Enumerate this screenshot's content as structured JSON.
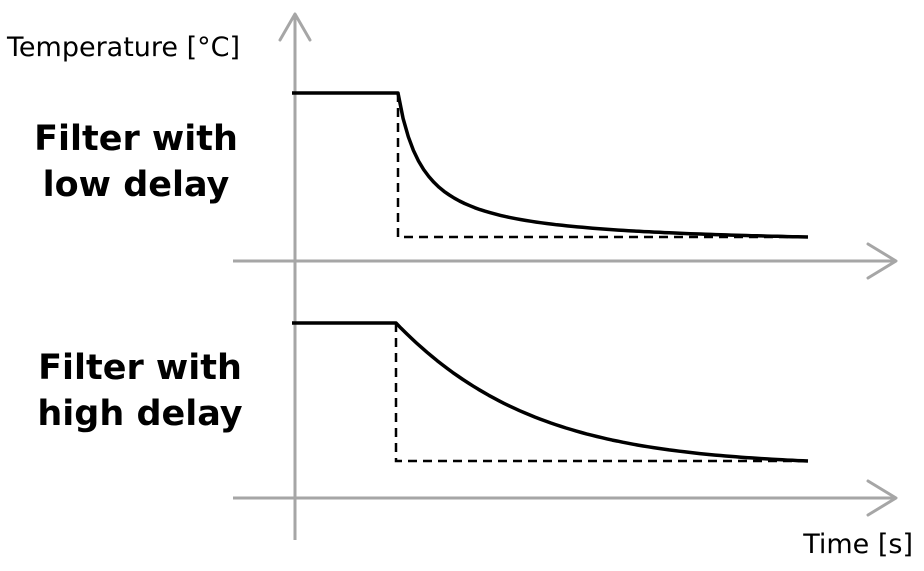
{
  "axes": {
    "y_label": "Temperature [°C]",
    "x_label": "Time [s]"
  },
  "panels": [
    {
      "id": "low",
      "label_line1": "Filter with",
      "label_line2": "low delay",
      "response": "fast"
    },
    {
      "id": "high",
      "label_line1": "Filter with",
      "label_line2": "high delay",
      "response": "slow"
    }
  ],
  "colors": {
    "axis": "#a6a6a6",
    "curve": "#000000"
  }
}
